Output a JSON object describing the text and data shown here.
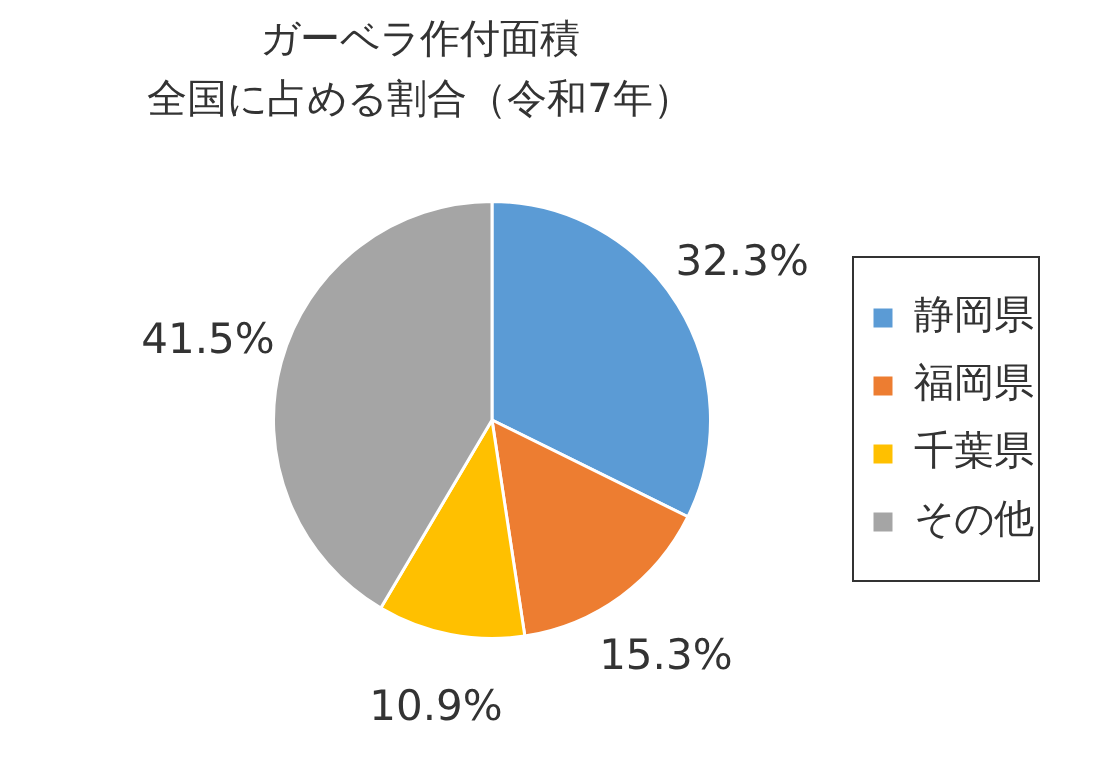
{
  "chart_data": {
    "type": "pie",
    "title": "ガーベラ作付面積",
    "subtitle": "全国に占める割合（令和7年）",
    "categories": [
      "静岡県",
      "福岡県",
      "千葉県",
      "その他"
    ],
    "values": [
      32.3,
      15.3,
      10.9,
      41.5
    ],
    "colors": [
      "#5b9bd5",
      "#ed7d31",
      "#ffc000",
      "#a5a5a5"
    ],
    "value_labels": [
      "32.3%",
      "15.3%",
      "10.9%",
      "41.5%"
    ],
    "legend": "right"
  }
}
